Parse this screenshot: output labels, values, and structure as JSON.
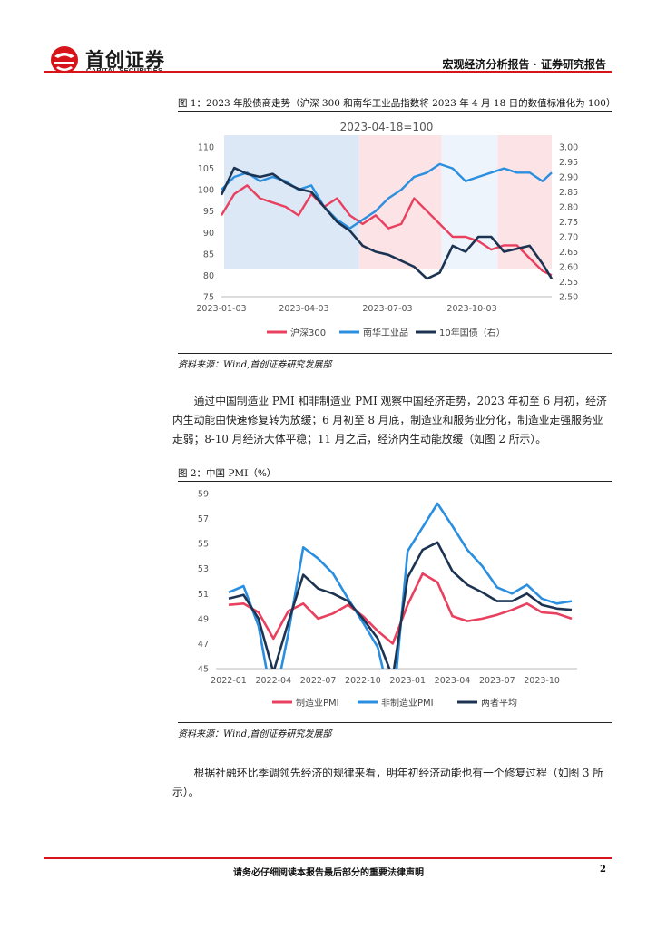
{
  "header": {
    "logo_cn": "首创证券",
    "logo_en": "CAPITAL SECURITIES",
    "report_type": "宏观经济分析报告 · 证券研究报告",
    "accent": "#d7141a"
  },
  "figure1": {
    "caption": "图 1：2023 年股债商走势（沪深 300 和南华工业品指数将 2023 年 4 月 18 日的数值标准化为 100）",
    "source": "资料来源：Wind,首创证券研究发展部"
  },
  "paragraph1": "通过中国制造业 PMI 和非制造业 PMI 观察中国经济走势，2023 年初至 6 月初，经济内生动能由快速修复转为放缓；6 月初至 8 月底，制造业和服务业分化，制造业走强服务业走弱；8-10 月经济大体平稳；11 月之后，经济内生动能放缓（如图 2 所示）。",
  "figure2": {
    "caption": "图 2：中国 PMI（%）",
    "source": "资料来源：Wind,首创证券研究发展部"
  },
  "paragraph2": "根据社融环比季调领先经济的规律来看，明年初经济动能也有一个修复过程（如图 3 所示）。",
  "footer": {
    "disclaimer": "请务必仔细阅读本报告最后部分的重要法律声明",
    "page_number": "2"
  },
  "chart_data": [
    {
      "type": "line",
      "title": "2023-04-18=100",
      "x_tick_labels": [
        "2023-01-03",
        "2023-04-03",
        "2023-07-03",
        "2023-10-03"
      ],
      "ylim_left": [
        75,
        110
      ],
      "y_ticks_left": [
        "75",
        "80",
        "85",
        "90",
        "95",
        "100",
        "105",
        "110"
      ],
      "ylim_right": [
        2.5,
        3.0
      ],
      "y_ticks_right": [
        "2.50",
        "2.55",
        "2.60",
        "2.65",
        "2.70",
        "2.75",
        "2.80",
        "2.85",
        "2.90",
        "2.95",
        "3.00"
      ],
      "legend": "bottom",
      "shaded_periods": [
        {
          "start": "2023-01-06",
          "end": "2023-06-02",
          "color": "#dce8f6"
        },
        {
          "start": "2023-06-02",
          "end": "2023-08-31",
          "color": "#fbe3e6"
        },
        {
          "start": "2023-08-31",
          "end": "2023-10-31",
          "color": "#eef4fb"
        },
        {
          "start": "2023-10-31",
          "end": "2023-12-29",
          "color": "#fbe3e6"
        }
      ],
      "series": [
        {
          "name": "沪深300",
          "axis": "left",
          "color": "#e8405e",
          "x": [
            "2023-01-03",
            "2023-01-17",
            "2023-01-31",
            "2023-02-14",
            "2023-02-28",
            "2023-03-14",
            "2023-03-28",
            "2023-04-11",
            "2023-04-25",
            "2023-05-09",
            "2023-05-23",
            "2023-06-06",
            "2023-06-20",
            "2023-07-04",
            "2023-07-18",
            "2023-08-01",
            "2023-08-15",
            "2023-08-29",
            "2023-09-12",
            "2023-09-26",
            "2023-10-10",
            "2023-10-24",
            "2023-11-07",
            "2023-11-21",
            "2023-12-05",
            "2023-12-19",
            "2023-12-29"
          ],
          "values": [
            94,
            99,
            101,
            98,
            97,
            96,
            94,
            99,
            96,
            98,
            94,
            92,
            94,
            91,
            92,
            98,
            95,
            92,
            89,
            89,
            88,
            86,
            87,
            87,
            84,
            81,
            80
          ]
        },
        {
          "name": "南华工业品",
          "axis": "left",
          "color": "#2b8fe0",
          "x": [
            "2023-01-03",
            "2023-01-17",
            "2023-01-31",
            "2023-02-14",
            "2023-02-28",
            "2023-03-14",
            "2023-03-28",
            "2023-04-11",
            "2023-04-25",
            "2023-05-09",
            "2023-05-23",
            "2023-06-06",
            "2023-06-20",
            "2023-07-04",
            "2023-07-18",
            "2023-08-01",
            "2023-08-15",
            "2023-08-29",
            "2023-09-12",
            "2023-09-26",
            "2023-10-10",
            "2023-10-24",
            "2023-11-07",
            "2023-11-21",
            "2023-12-05",
            "2023-12-19",
            "2023-12-29"
          ],
          "values": [
            100,
            103,
            104,
            102,
            103,
            102,
            100,
            101,
            96,
            93,
            91,
            93,
            95,
            98,
            100,
            103,
            104,
            106,
            105,
            102,
            103,
            104,
            105,
            104,
            104,
            102,
            104
          ]
        },
        {
          "name": "10年国债（右）",
          "axis": "right",
          "color": "#1c3452",
          "x": [
            "2023-01-03",
            "2023-01-17",
            "2023-01-31",
            "2023-02-14",
            "2023-02-28",
            "2023-03-14",
            "2023-03-28",
            "2023-04-11",
            "2023-04-25",
            "2023-05-09",
            "2023-05-23",
            "2023-06-06",
            "2023-06-20",
            "2023-07-04",
            "2023-07-18",
            "2023-08-01",
            "2023-08-15",
            "2023-08-29",
            "2023-09-12",
            "2023-09-26",
            "2023-10-10",
            "2023-10-24",
            "2023-11-07",
            "2023-11-21",
            "2023-12-05",
            "2023-12-19",
            "2023-12-29"
          ],
          "values": [
            2.84,
            2.93,
            2.91,
            2.9,
            2.91,
            2.88,
            2.86,
            2.85,
            2.8,
            2.75,
            2.72,
            2.67,
            2.65,
            2.64,
            2.62,
            2.6,
            2.56,
            2.58,
            2.67,
            2.65,
            2.7,
            2.7,
            2.65,
            2.66,
            2.67,
            2.61,
            2.56
          ]
        }
      ]
    },
    {
      "type": "line",
      "title": "",
      "x_tick_labels": [
        "2022-01",
        "2022-04",
        "2022-07",
        "2022-10",
        "2023-01",
        "2023-04",
        "2023-07",
        "2023-10"
      ],
      "ylim": [
        45,
        59
      ],
      "y_ticks": [
        "45",
        "47",
        "49",
        "51",
        "53",
        "55",
        "57",
        "59"
      ],
      "legend": "bottom",
      "categories": [
        "2022-01",
        "2022-02",
        "2022-03",
        "2022-04",
        "2022-05",
        "2022-06",
        "2022-07",
        "2022-08",
        "2022-09",
        "2022-10",
        "2022-11",
        "2022-12",
        "2023-01",
        "2023-02",
        "2023-03",
        "2023-04",
        "2023-05",
        "2023-06",
        "2023-07",
        "2023-08",
        "2023-09",
        "2023-10",
        "2023-11",
        "2023-12"
      ],
      "series": [
        {
          "name": "制造业PMI",
          "color": "#e8405e",
          "values": [
            50.1,
            50.2,
            49.5,
            47.4,
            49.6,
            50.2,
            49.0,
            49.4,
            50.1,
            49.2,
            48.0,
            47.0,
            50.1,
            52.6,
            51.9,
            49.2,
            48.8,
            49.0,
            49.3,
            49.7,
            50.2,
            49.5,
            49.4,
            49.0
          ]
        },
        {
          "name": "非制造业PMI",
          "color": "#2b8fe0",
          "values": [
            51.1,
            51.6,
            48.4,
            41.9,
            47.8,
            54.7,
            53.8,
            52.6,
            50.6,
            48.7,
            46.7,
            41.6,
            54.4,
            56.3,
            58.2,
            56.4,
            54.5,
            53.2,
            51.5,
            51.0,
            51.7,
            50.6,
            50.2,
            50.4
          ]
        },
        {
          "name": "两者平均",
          "color": "#1c3452",
          "values": [
            50.6,
            50.9,
            49.0,
            44.7,
            48.7,
            52.5,
            51.4,
            51.0,
            50.4,
            49.0,
            47.4,
            44.3,
            52.3,
            54.5,
            55.1,
            52.8,
            51.7,
            51.1,
            50.4,
            50.4,
            51.0,
            50.1,
            49.8,
            49.7
          ]
        }
      ]
    }
  ]
}
